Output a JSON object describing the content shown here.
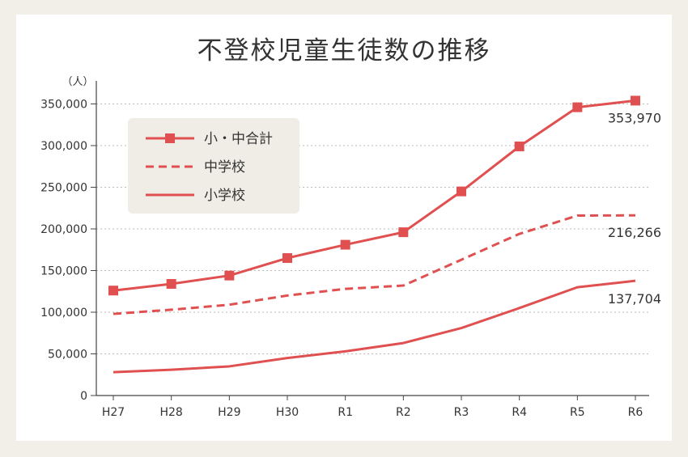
{
  "chart_data": {
    "type": "line",
    "title": "不登校児童生徒数の推移",
    "ylabel": "（人）",
    "xlabel": "",
    "categories": [
      "H27",
      "H28",
      "H29",
      "H30",
      "R1",
      "R2",
      "R3",
      "R4",
      "R5",
      "R6"
    ],
    "yticks": [
      "0",
      "50,000",
      "100,000",
      "150,000",
      "200,000",
      "250,000",
      "300,000",
      "350,000"
    ],
    "ylim": [
      0,
      360000
    ],
    "grid": true,
    "legend_position": "top-left",
    "colors": {
      "line": "#e05050",
      "grid": "#bbbbbb",
      "axis": "#444444",
      "legend_bg": "#f0ede6"
    },
    "series": [
      {
        "name": "小・中合計",
        "style": "solid-square-marker",
        "values": [
          126000,
          134000,
          144000,
          165000,
          181000,
          196000,
          245000,
          299000,
          346000,
          353970
        ],
        "end_label": "353,970"
      },
      {
        "name": "中学校",
        "style": "dashed",
        "values": [
          98000,
          103000,
          109000,
          120000,
          128000,
          132000,
          163000,
          194000,
          216000,
          216266
        ],
        "end_label": "216,266"
      },
      {
        "name": "小学校",
        "style": "solid",
        "values": [
          28000,
          31000,
          35000,
          45000,
          53000,
          63000,
          81000,
          105000,
          130000,
          137704
        ],
        "end_label": "137,704"
      }
    ]
  }
}
